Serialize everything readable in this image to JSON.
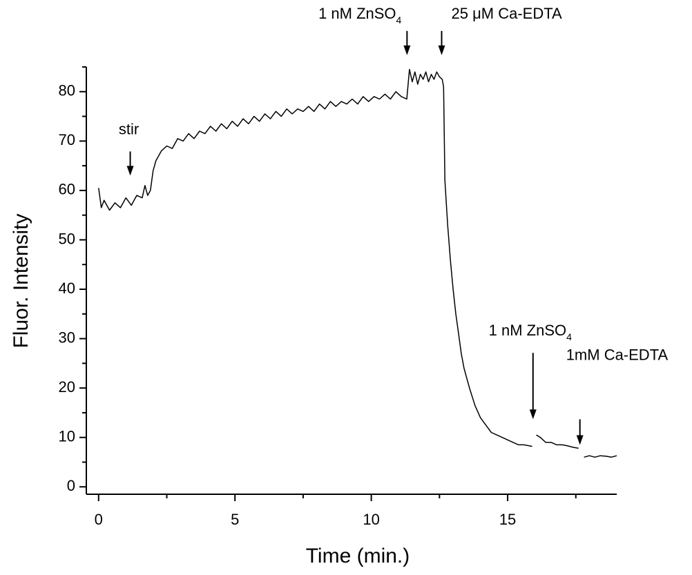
{
  "chart_data": {
    "type": "line",
    "xlabel": "Time (min.)",
    "ylabel": "Fluor. Intensity",
    "xlim": [
      -0.45,
      19
    ],
    "ylim": [
      -1.5,
      85
    ],
    "xticks": [
      0,
      5,
      10,
      15
    ],
    "yticks": [
      0,
      10,
      20,
      30,
      40,
      50,
      60,
      70,
      80
    ],
    "xminorticks": [
      2.5,
      7.5,
      12.5,
      17.5
    ],
    "yminorticks": [
      5,
      15,
      25,
      35,
      45,
      55,
      65,
      75,
      85
    ],
    "grid": false,
    "color": "#000000",
    "x": [
      0,
      0.1,
      0.2,
      0.4,
      0.6,
      0.8,
      1.0,
      1.2,
      1.4,
      1.6,
      1.7,
      1.8,
      1.9,
      2.0,
      2.1,
      2.3,
      2.5,
      2.7,
      2.9,
      3.1,
      3.3,
      3.5,
      3.7,
      3.9,
      4.1,
      4.3,
      4.5,
      4.7,
      4.9,
      5.1,
      5.3,
      5.5,
      5.7,
      5.9,
      6.1,
      6.3,
      6.5,
      6.7,
      6.9,
      7.1,
      7.3,
      7.5,
      7.7,
      7.9,
      8.1,
      8.3,
      8.5,
      8.7,
      8.9,
      9.1,
      9.3,
      9.5,
      9.7,
      9.9,
      10.1,
      10.3,
      10.5,
      10.7,
      10.9,
      11.1,
      11.3,
      11.4,
      11.5,
      11.6,
      11.7,
      11.8,
      11.9,
      12.0,
      12.1,
      12.2,
      12.3,
      12.4,
      12.5,
      12.6,
      12.65,
      12.7,
      12.8,
      12.9,
      13.0,
      13.1,
      13.2,
      13.3,
      13.4,
      13.6,
      13.8,
      14.0,
      14.2,
      14.4,
      14.6,
      14.8,
      15.0,
      15.2,
      15.4,
      15.6,
      15.8,
      15.9,
      16.0,
      16.05,
      16.2,
      16.4,
      16.6,
      16.8,
      17.0,
      17.2,
      17.4,
      17.6,
      17.7,
      17.8,
      18.0,
      18.2,
      18.4,
      18.6,
      18.8,
      19.0
    ],
    "values": [
      60.5,
      56.5,
      58,
      56,
      57.5,
      56.5,
      58.5,
      57,
      59,
      58.5,
      61,
      59,
      60,
      64,
      66,
      68,
      69,
      68.5,
      70.5,
      70,
      71.5,
      70.5,
      72,
      71.5,
      73,
      72,
      73.5,
      72.5,
      74,
      73,
      74.5,
      73.5,
      75,
      74,
      75.5,
      74.5,
      76,
      75,
      76.5,
      75.5,
      76.5,
      76,
      77,
      76,
      77.5,
      76.5,
      78,
      77,
      78,
      77.5,
      78.5,
      77.5,
      79,
      78,
      79,
      78.5,
      79.5,
      78.5,
      80,
      79,
      78.5,
      84.5,
      82,
      84,
      81.5,
      83.5,
      82.5,
      84,
      82,
      83.5,
      82.5,
      84,
      83,
      82.5,
      81,
      62,
      53,
      46,
      40,
      35,
      31,
      27,
      24,
      20,
      16.5,
      14,
      12.5,
      11,
      10.5,
      10,
      9.5,
      9,
      8.5,
      8.5,
      8.3,
      8.2,
      null,
      10.5,
      10,
      9,
      9,
      8.5,
      8.5,
      8.3,
      8,
      7.8,
      null,
      6,
      6.3,
      6,
      6.3,
      6.2,
      6,
      6.3
    ],
    "annotations": [
      {
        "text": "stir",
        "x": 1.16,
        "y": 63
      },
      {
        "text": "1 nM ZnSO",
        "subscript": "4",
        "x": 11.31,
        "y": 87.4
      },
      {
        "text": "25 μM Ca-EDTA",
        "x": 12.58,
        "y": 87.4
      },
      {
        "text": "1 nM ZnSO",
        "subscript": "4",
        "x": 15.93,
        "y": 13.7
      },
      {
        "text": "1mM Ca-EDTA",
        "x": 17.65,
        "y": 8.5
      }
    ]
  }
}
